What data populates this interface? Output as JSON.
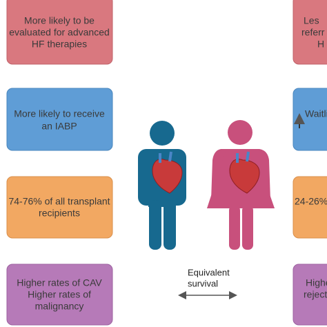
{
  "left_boxes": [
    {
      "lines": [
        "More likely to be",
        "evaluated for advanced",
        "HF therapies"
      ]
    },
    {
      "lines": [
        "More likely to receive",
        "an IABP"
      ]
    },
    {
      "lines": [
        "74-76% of all transplant",
        "recipients"
      ]
    },
    {
      "lines": [
        "Higher rates of CAV",
        "Higher rates of",
        "malignancy"
      ]
    }
  ],
  "right_boxes": [
    {
      "lines": [
        "Les",
        "referr",
        "H"
      ]
    },
    {
      "lines": [
        "Waitli"
      ]
    },
    {
      "lines": [
        "24-26%"
      ]
    },
    {
      "lines": [
        "Highe",
        "reject"
      ]
    }
  ],
  "center_label": {
    "lines": [
      "Equivalent",
      "survival"
    ]
  }
}
